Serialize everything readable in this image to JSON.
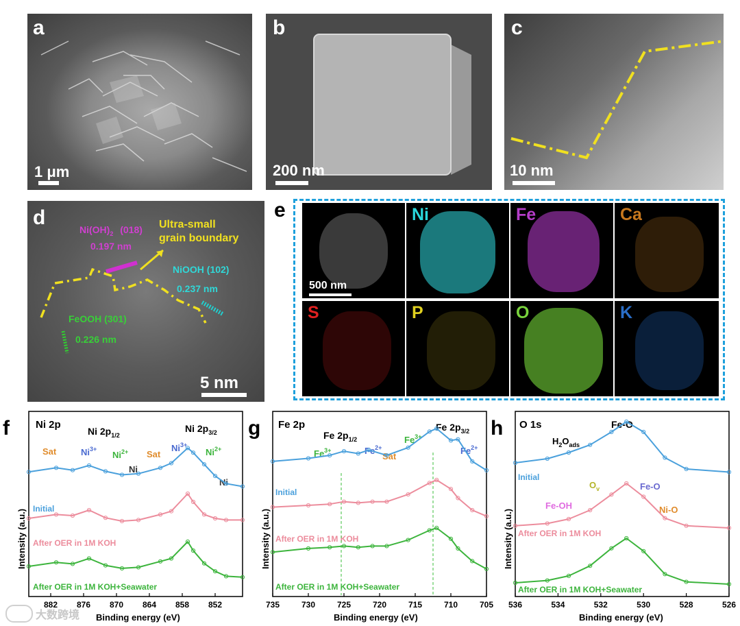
{
  "figure": {
    "panels": {
      "a": {
        "label": "a",
        "scale_bar": "1 μm"
      },
      "b": {
        "label": "b",
        "scale_bar": "200 nm"
      },
      "c": {
        "label": "c",
        "scale_bar": "10 nm"
      },
      "d": {
        "label": "d",
        "scale_bar": "5 nm",
        "annotations": {
          "nioh2_main": "Ni(OH)",
          "nioh2_sub": "2",
          "nioh2_plane": "(018)",
          "nioh2_d": "0.197 nm",
          "boundary_1": "Ultra-small",
          "boundary_2": "grain boundary",
          "niooh": "NiOOH (102)",
          "niooh_d": "0.237 nm",
          "feooh": "FeOOH (301)",
          "feooh_d": "0.226 nm"
        }
      },
      "e": {
        "label": "e",
        "scale_bar": "500 nm",
        "elements": [
          {
            "name": "Ni",
            "color": "#2ad8dc"
          },
          {
            "name": "Fe",
            "color": "#b43cc8"
          },
          {
            "name": "Ca",
            "color": "#c8781e"
          },
          {
            "name": "S",
            "color": "#e02020"
          },
          {
            "name": "P",
            "color": "#e0d020"
          },
          {
            "name": "O",
            "color": "#78d23c"
          },
          {
            "name": "K",
            "color": "#2a6ec8"
          }
        ]
      },
      "f": {
        "label": "f",
        "title": "Ni 2p",
        "peak_labels": {
          "ni2p12": "Ni 2p",
          "ni2p12_sub": "1/2",
          "ni2p32": "Ni 2p",
          "ni2p32_sub": "3/2",
          "sat": "Sat",
          "ni3": "Ni",
          "ni3_sup": "3+",
          "ni2": "Ni",
          "ni2_sup": "2+",
          "ni0": "Ni"
        },
        "traces": [
          "Initial",
          "After OER in 1M KOH",
          "After OER in 1M KOH+Seawater"
        ],
        "xlabel": "Binding energy (eV)",
        "ylabel": "Intensity (a.u.)",
        "xticks": [
          "882",
          "876",
          "870",
          "864",
          "858",
          "852"
        ]
      },
      "g": {
        "label": "g",
        "title": "Fe 2p",
        "peak_labels": {
          "fe2p12": "Fe 2p",
          "fe2p12_sub": "1/2",
          "fe2p32": "Fe 2p",
          "fe2p32_sub": "3/2",
          "fe3": "Fe",
          "fe3_sup": "3+",
          "fe2": "Fe",
          "fe2_sup": "2+",
          "sat": "Sat"
        },
        "traces": [
          "Initial",
          "After OER in 1M KOH",
          "After OER in 1M KOH+Seawater"
        ],
        "xlabel": "Binding energy (eV)",
        "ylabel": "Intensity (a.u.)",
        "xticks": [
          "735",
          "730",
          "725",
          "720",
          "715",
          "710",
          "705"
        ]
      },
      "h": {
        "label": "h",
        "title": "O 1s",
        "peak_labels": {
          "feo_top": "Fe-O",
          "h2o": "H",
          "h2o_sub1": "2",
          "h2o_mid": "O",
          "h2o_sub2": "ads",
          "ov": "O",
          "ov_sub": "v",
          "feo": "Fe-O",
          "feoh": "Fe-OH",
          "nio": "Ni-O"
        },
        "traces": [
          "Initial",
          "After OER in 1M KOH",
          "After OER in 1M KOH+Seawater"
        ],
        "xlabel": "Binding energy (eV)",
        "ylabel": "Intensity (a.u.)",
        "xticks": [
          "536",
          "534",
          "532",
          "530",
          "528",
          "526"
        ]
      }
    },
    "watermark": "大数跨境"
  },
  "chart_data": [
    {
      "type": "line",
      "title": "Ni 2p",
      "xlabel": "Binding energy (eV)",
      "ylabel": "Intensity (a.u.)",
      "xlim": [
        886,
        847
      ],
      "xticks": [
        882,
        876,
        870,
        864,
        858,
        852
      ],
      "series": [
        {
          "name": "Initial",
          "x": [
            886,
            881,
            878,
            875,
            872,
            869,
            866,
            862,
            860,
            857,
            856,
            854,
            852,
            850,
            847
          ],
          "y": [
            0.55,
            0.62,
            0.58,
            0.66,
            0.56,
            0.5,
            0.52,
            0.62,
            0.7,
            0.96,
            0.88,
            0.68,
            0.48,
            0.35,
            0.3
          ]
        },
        {
          "name": "After OER in 1M KOH",
          "x": [
            886,
            881,
            878,
            875,
            872,
            869,
            866,
            862,
            860,
            857,
            856,
            854,
            852,
            850,
            847
          ],
          "y": [
            0.55,
            0.62,
            0.6,
            0.7,
            0.56,
            0.5,
            0.52,
            0.62,
            0.68,
            1.0,
            0.85,
            0.62,
            0.55,
            0.52,
            0.52
          ]
        },
        {
          "name": "After OER in 1M KOH+Seawater",
          "x": [
            886,
            881,
            878,
            875,
            872,
            869,
            866,
            862,
            860,
            857,
            856,
            854,
            852,
            850,
            847
          ],
          "y": [
            0.5,
            0.58,
            0.55,
            0.66,
            0.52,
            0.46,
            0.48,
            0.6,
            0.66,
            1.0,
            0.82,
            0.56,
            0.4,
            0.3,
            0.28
          ]
        }
      ]
    },
    {
      "type": "line",
      "title": "Fe 2p",
      "xlabel": "Binding energy (eV)",
      "ylabel": "Intensity (a.u.)",
      "xlim": [
        735,
        705
      ],
      "xticks": [
        735,
        730,
        725,
        720,
        715,
        710,
        705
      ],
      "series": [
        {
          "name": "Initial",
          "x": [
            735,
            730,
            727,
            725,
            723,
            721.5,
            719,
            716,
            713,
            712,
            710,
            709,
            707,
            705
          ],
          "y": [
            0.45,
            0.5,
            0.55,
            0.62,
            0.58,
            0.64,
            0.55,
            0.68,
            0.95,
            1.0,
            0.8,
            0.82,
            0.45,
            0.3
          ]
        },
        {
          "name": "After OER in 1M KOH",
          "x": [
            735,
            730,
            727,
            725,
            723,
            721,
            719,
            716,
            713,
            712,
            710,
            709,
            707,
            705
          ],
          "y": [
            0.55,
            0.58,
            0.6,
            0.64,
            0.62,
            0.64,
            0.64,
            0.76,
            0.95,
            1.0,
            0.85,
            0.7,
            0.5,
            0.4
          ]
        },
        {
          "name": "After OER in 1M KOH+Seawater",
          "x": [
            735,
            730,
            727,
            725,
            723,
            721,
            719,
            716,
            713,
            712,
            710,
            709,
            707,
            705
          ],
          "y": [
            0.6,
            0.66,
            0.68,
            0.7,
            0.68,
            0.7,
            0.7,
            0.8,
            0.96,
            1.0,
            0.82,
            0.66,
            0.45,
            0.32
          ]
        }
      ]
    },
    {
      "type": "line",
      "title": "O 1s",
      "xlabel": "Binding energy (eV)",
      "ylabel": "Intensity (a.u.)",
      "xlim": [
        536,
        526
      ],
      "xticks": [
        536,
        534,
        532,
        530,
        528,
        526
      ],
      "series": [
        {
          "name": "Initial",
          "x": [
            536,
            534.5,
            533.5,
            532.5,
            531.5,
            530.8,
            530,
            529,
            528,
            526
          ],
          "y": [
            0.2,
            0.28,
            0.4,
            0.55,
            0.8,
            1.0,
            0.8,
            0.3,
            0.08,
            0.02
          ]
        },
        {
          "name": "After OER in 1M KOH",
          "x": [
            536,
            534.5,
            533.5,
            532.5,
            531.5,
            530.8,
            530,
            529,
            528,
            526
          ],
          "y": [
            0.05,
            0.1,
            0.2,
            0.4,
            0.75,
            1.0,
            0.7,
            0.22,
            0.05,
            0.0
          ]
        },
        {
          "name": "After OER in 1M KOH+Seawater",
          "x": [
            536,
            534.5,
            533.5,
            532.5,
            531.5,
            530.8,
            530,
            529,
            528,
            526
          ],
          "y": [
            0.03,
            0.08,
            0.18,
            0.4,
            0.78,
            1.0,
            0.72,
            0.22,
            0.05,
            0.0
          ]
        }
      ]
    }
  ]
}
